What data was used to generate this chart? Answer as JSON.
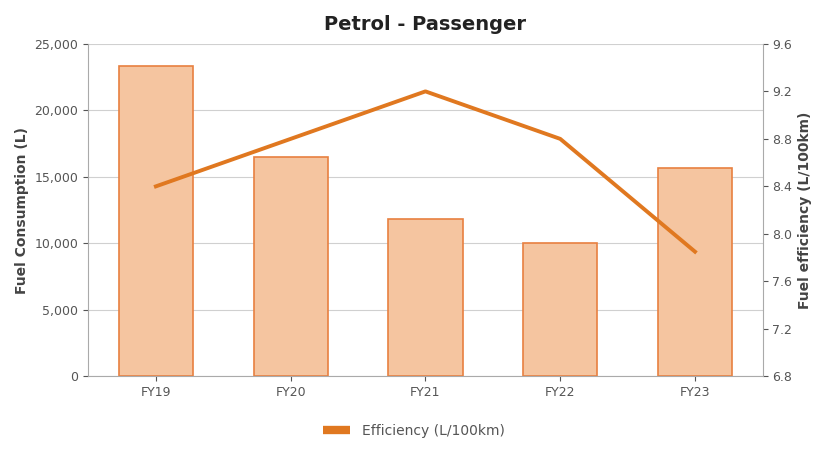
{
  "title": "Petrol - Passenger",
  "categories": [
    "FY19",
    "FY20",
    "FY21",
    "FY22",
    "FY23"
  ],
  "bar_values": [
    23300,
    16500,
    11800,
    10000,
    15700
  ],
  "line_values": [
    8.4,
    8.8,
    9.2,
    8.8,
    7.85
  ],
  "bar_fill_color": "#f5c5a0",
  "bar_edge_color": "#e88040",
  "line_color": "#e07820",
  "ylabel_left": "Fuel Consumption (L)",
  "ylabel_right": "Fuel efficiency (L/100km)",
  "ylim_left": [
    0,
    25000
  ],
  "ylim_right": [
    6.8,
    9.6
  ],
  "yticks_left": [
    0,
    5000,
    10000,
    15000,
    20000,
    25000
  ],
  "yticks_right": [
    6.8,
    7.2,
    7.6,
    8.0,
    8.4,
    8.8,
    9.2,
    9.6
  ],
  "legend_label": "Efficiency (L/100km)",
  "title_fontsize": 14,
  "axis_fontsize": 10,
  "tick_fontsize": 9,
  "background_color": "#ffffff",
  "plot_bg_color": "#ffffff",
  "grid_color": "#d0d0d0",
  "bar_width": 0.55
}
